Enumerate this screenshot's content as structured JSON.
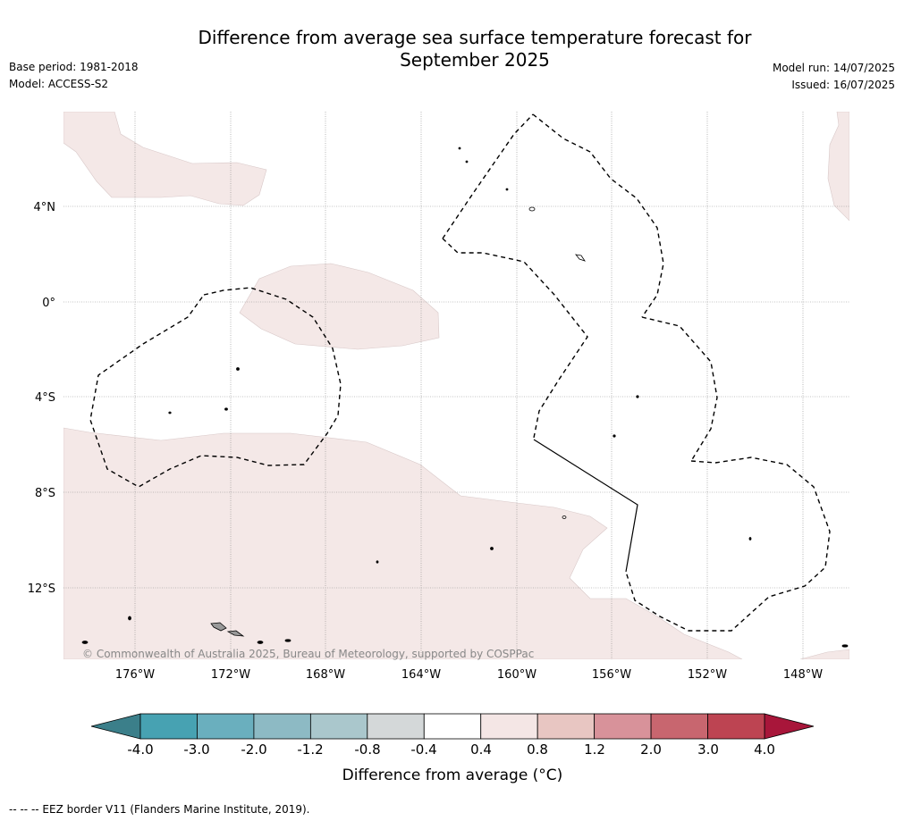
{
  "title_line1": "Difference from average sea surface temperature forecast for",
  "title_line2": "September 2025",
  "base_period": "Base period: 1981-2018",
  "model": "Model: ACCESS-S2",
  "model_run": "Model run: 14/07/2025",
  "issued": "Issued: 16/07/2025",
  "copyright": "© Commonwealth of Australia 2025, Bureau of Meteorology, supported by COSPPac",
  "lat_labels": [
    "4°N",
    "0°",
    "4°S",
    "8°S",
    "12°S"
  ],
  "lon_labels": [
    "176°W",
    "172°W",
    "168°W",
    "164°W",
    "160°W",
    "156°W",
    "152°W",
    "148°W"
  ],
  "colorbar": {
    "title": "Difference from average (°C)",
    "tick_labels": [
      "-4.0",
      "-3.0",
      "-2.0",
      "-1.2",
      "-0.8",
      "-0.4",
      "0.4",
      "0.8",
      "1.2",
      "2.0",
      "3.0",
      "4.0"
    ],
    "colors": [
      "#47a2b2",
      "#6aafbe",
      "#8dbac4",
      "#aac7cc",
      "#d4d8d9",
      "#ffffff",
      "#f4e6e5",
      "#e8c6c2",
      "#d8929a",
      "#c8666f",
      "#bd4452"
    ],
    "low_extend_color": "#3b7f8a",
    "high_extend_color": "#a8163a"
  },
  "anomaly_fill_color": "#f4e8e7",
  "footer": "-- -- -- EEZ border V11 (Flanders Marine Institute, 2019)."
}
